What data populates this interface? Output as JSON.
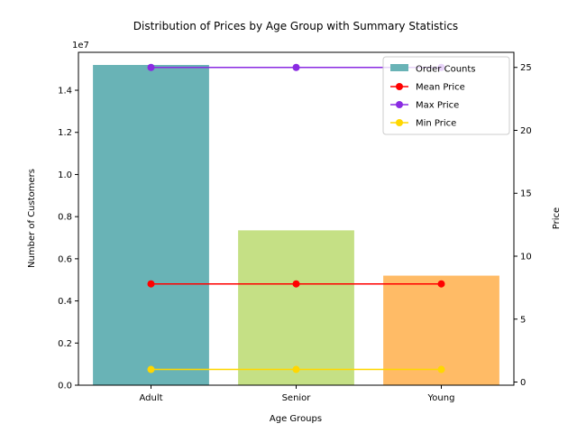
{
  "chart_data": {
    "type": "bar",
    "title": "Distribution of Prices by Age Group with Summary Statistics",
    "xlabel": "Age Groups",
    "ylabel": "Number of Customers",
    "ylabel_right": "Price",
    "y_offset_label": "1e7",
    "categories": [
      "Adult",
      "Senior",
      "Young"
    ],
    "bars": {
      "name": "Order Counts",
      "values": [
        15200000,
        7350000,
        5200000
      ],
      "colors": [
        "#69b3b6",
        "#c5e085",
        "#ffbb66"
      ]
    },
    "ylim": [
      0,
      15800000
    ],
    "y_ticks": [
      0,
      2000000,
      4000000,
      6000000,
      8000000,
      10000000,
      12000000,
      14000000
    ],
    "y_tick_labels": [
      "0.0",
      "0.2",
      "0.4",
      "0.6",
      "0.8",
      "1.0",
      "1.2",
      "1.4"
    ],
    "ylim_right": [
      -0.25,
      26.2
    ],
    "y_ticks_right": [
      0,
      5,
      10,
      15,
      20,
      25
    ],
    "y_tick_labels_right": [
      "0",
      "5",
      "10",
      "15",
      "20",
      "25"
    ],
    "lines": [
      {
        "name": "Mean Price",
        "values": [
          7.8,
          7.8,
          7.8
        ],
        "color": "#ff0000"
      },
      {
        "name": "Max Price",
        "values": [
          25,
          25,
          25
        ],
        "color": "#8a2be2"
      },
      {
        "name": "Min Price",
        "values": [
          1,
          1,
          1
        ],
        "color": "#ffd700"
      }
    ],
    "legend_position": "top-right"
  }
}
